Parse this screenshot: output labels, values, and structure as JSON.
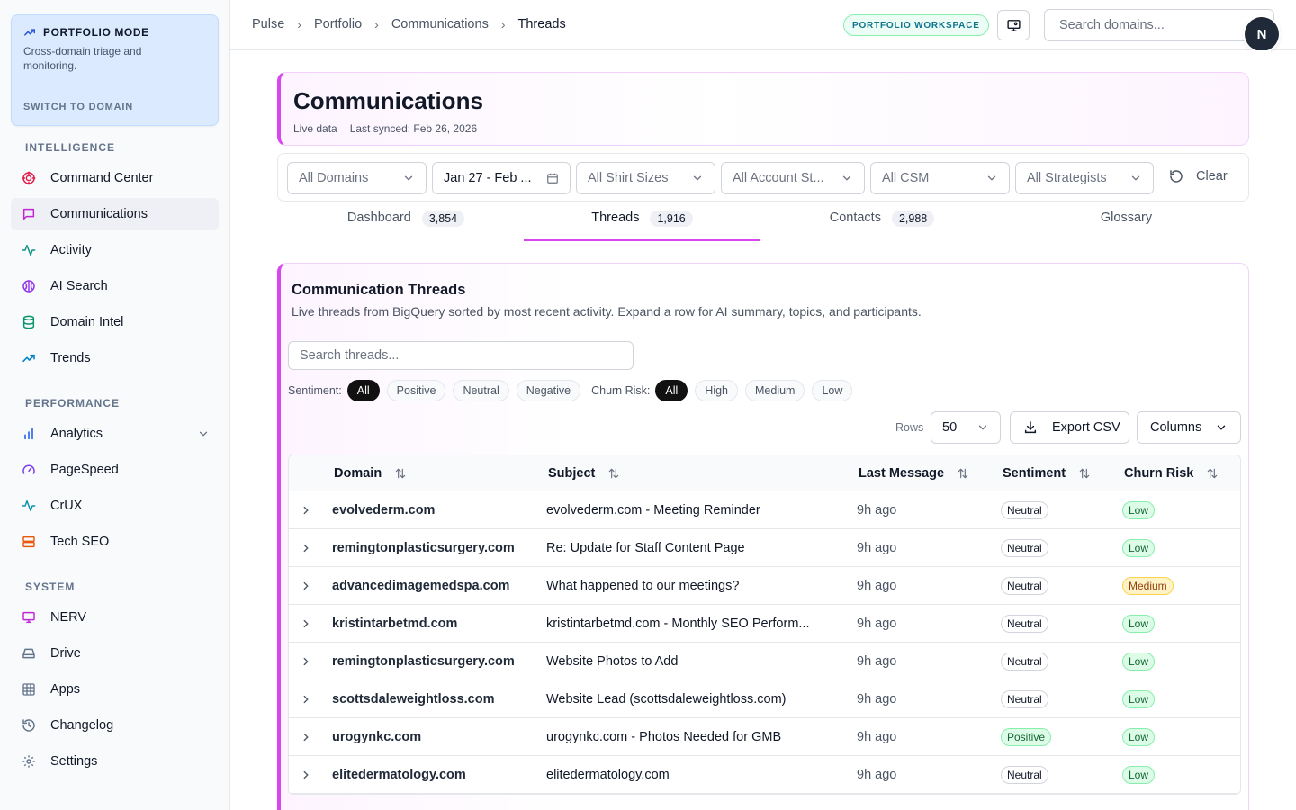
{
  "sidebar": {
    "mode_card": {
      "title": "PORTFOLIO MODE",
      "description": "Cross-domain triage and monitoring.",
      "switch_label": "SWITCH TO DOMAIN"
    },
    "sections": [
      "INTELLIGENCE",
      "PERFORMANCE",
      "SYSTEM"
    ],
    "intelligence": [
      {
        "label": "Command Center",
        "icon": "target-icon"
      },
      {
        "label": "Communications",
        "icon": "message-icon"
      },
      {
        "label": "Activity",
        "icon": "activity-icon"
      },
      {
        "label": "AI Search",
        "icon": "brain-icon"
      },
      {
        "label": "Domain Intel",
        "icon": "database-icon"
      },
      {
        "label": "Trends",
        "icon": "trending-up-icon"
      }
    ],
    "performance": [
      {
        "label": "Analytics",
        "icon": "bar-chart-icon"
      },
      {
        "label": "PageSpeed",
        "icon": "gauge-icon"
      },
      {
        "label": "CrUX",
        "icon": "pulse-icon"
      },
      {
        "label": "Tech SEO",
        "icon": "server-icon"
      }
    ],
    "system": [
      {
        "label": "NERV",
        "icon": "monitor-icon"
      },
      {
        "label": "Drive",
        "icon": "hard-drive-icon"
      },
      {
        "label": "Apps",
        "icon": "grid-icon"
      },
      {
        "label": "Changelog",
        "icon": "history-icon"
      },
      {
        "label": "Settings",
        "icon": "gear-icon"
      }
    ]
  },
  "topbar": {
    "breadcrumbs": [
      "Pulse",
      "Portfolio",
      "Communications",
      "Threads"
    ],
    "workspace_badge": "PORTFOLIO WORKSPACE",
    "search_placeholder": "Search domains...",
    "avatar_initial": "N"
  },
  "header": {
    "title": "Communications",
    "live": "Live data",
    "synced": "Last synced: Feb 26, 2026"
  },
  "filters": {
    "domains": "All Domains",
    "date_range": "Jan 27 - Feb ...",
    "shirt_sizes": "All Shirt Sizes",
    "account_status": "All Account St...",
    "csm": "All CSM",
    "strategists": "All Strategists",
    "clear": "Clear"
  },
  "tabs": [
    {
      "label": "Dashboard",
      "count": "3,854"
    },
    {
      "label": "Threads",
      "count": "1,916"
    },
    {
      "label": "Contacts",
      "count": "2,988"
    },
    {
      "label": "Glossary",
      "count": ""
    }
  ],
  "threads": {
    "title": "Communication Threads",
    "description": "Live threads from BigQuery sorted by most recent activity. Expand a row for AI summary, topics, and participants.",
    "search_placeholder": "Search threads...",
    "sentiment_label": "Sentiment:",
    "sentiment_options": [
      "All",
      "Positive",
      "Neutral",
      "Negative"
    ],
    "churn_label": "Churn Risk:",
    "churn_options": [
      "All",
      "High",
      "Medium",
      "Low"
    ],
    "rows_label": "Rows",
    "rows_value": "50",
    "export_label": "Export CSV",
    "columns_label": "Columns",
    "columns": [
      "Domain",
      "Subject",
      "Last Message",
      "Sentiment",
      "Churn Risk"
    ],
    "rows": [
      {
        "domain": "evolvederm.com",
        "subject": "evolvederm.com - Meeting Reminder",
        "last": "9h ago",
        "sentiment": "Neutral",
        "churn": "Low"
      },
      {
        "domain": "remingtonplasticsurgery.com",
        "subject": "Re: Update for Staff Content Page",
        "last": "9h ago",
        "sentiment": "Neutral",
        "churn": "Low"
      },
      {
        "domain": "advancedimagemedspa.com",
        "subject": "What happened to our meetings?",
        "last": "9h ago",
        "sentiment": "Neutral",
        "churn": "Medium"
      },
      {
        "domain": "kristintarbetmd.com",
        "subject": "kristintarbetmd.com - Monthly SEO Perform...",
        "last": "9h ago",
        "sentiment": "Neutral",
        "churn": "Low"
      },
      {
        "domain": "remingtonplasticsurgery.com",
        "subject": "Website Photos to Add",
        "last": "9h ago",
        "sentiment": "Neutral",
        "churn": "Low"
      },
      {
        "domain": "scottsdaleweightloss.com",
        "subject": "Website Lead (scottsdaleweightloss.com)",
        "last": "9h ago",
        "sentiment": "Neutral",
        "churn": "Low"
      },
      {
        "domain": "urogynkc.com",
        "subject": "urogynkc.com - Photos Needed for GMB",
        "last": "9h ago",
        "sentiment": "Positive",
        "churn": "Low"
      },
      {
        "domain": "elitedermatology.com",
        "subject": "elitedermatology.com",
        "last": "9h ago",
        "sentiment": "Neutral",
        "churn": "Low"
      }
    ]
  },
  "colors": {
    "accent": "#d946ef",
    "sidebar_bg": "#f8fafc",
    "mode_card_bg": "#dbeafe"
  }
}
